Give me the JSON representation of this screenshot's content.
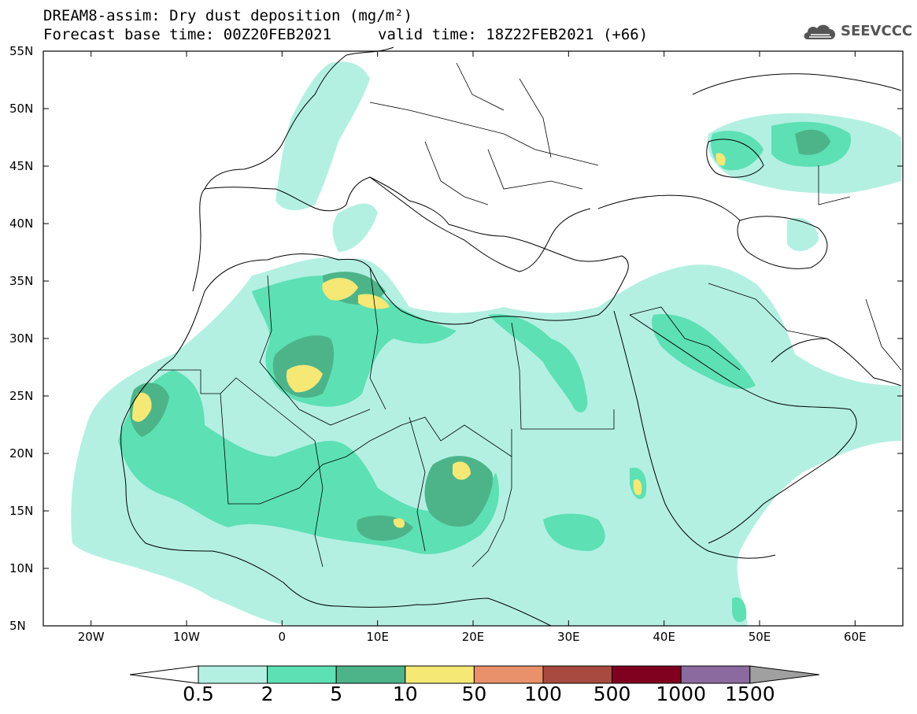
{
  "header": {
    "title_line1": "DREAM8-assim: Dry dust deposition (mg/m²)",
    "title_line2": "Forecast base time: 00Z20FEB2021",
    "valid_time": "valid time: 18Z22FEB2021 (+66)",
    "logo_text": "SEEVCCC",
    "logo_icon": "cloud-logo-icon"
  },
  "map": {
    "lon_range": [
      -25,
      65
    ],
    "lat_range": [
      5,
      55
    ],
    "lat_ticks": [
      "55N",
      "50N",
      "45N",
      "40N",
      "35N",
      "30N",
      "25N",
      "20N",
      "15N",
      "10N",
      "5N"
    ],
    "lon_ticks": [
      "20W",
      "10W",
      "0",
      "10E",
      "20E",
      "30E",
      "40E",
      "50E",
      "60E"
    ],
    "lon_tick_values": [
      -20,
      -10,
      0,
      10,
      20,
      30,
      40,
      50,
      60
    ],
    "lat_tick_values": [
      55,
      50,
      45,
      40,
      35,
      30,
      25,
      20,
      15,
      10,
      5
    ]
  },
  "legend": {
    "labels": [
      "0.5",
      "2",
      "5",
      "10",
      "50",
      "100",
      "500",
      "1000",
      "1500"
    ],
    "colors": [
      "#b3f0e2",
      "#5de0b4",
      "#4db48a",
      "#f5e875",
      "#e8916a",
      "#a84a3f",
      "#800020",
      "#8b6a9f"
    ],
    "under_color": "#ffffff",
    "over_color": "#a0a0a0"
  }
}
